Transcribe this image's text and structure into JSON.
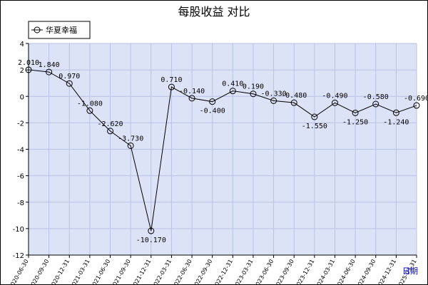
{
  "chart_data": {
    "type": "line",
    "title": "每股收益 对比",
    "xlabel": "日期",
    "ylabel": "",
    "ylim": [
      -12,
      4
    ],
    "yticks": [
      4,
      2,
      0,
      -2,
      -4,
      -6,
      -8,
      -10,
      -12
    ],
    "grid": true,
    "legend": "top-left",
    "x": [
      "2020-06-30",
      "2020-09-30",
      "2020-12-31",
      "2021-03-31",
      "2021-06-30",
      "2021-09-30",
      "2021-12-31",
      "2022-03-31",
      "2022-06-30",
      "2022-09-30",
      "2022-12-31",
      "2023-03-31",
      "2023-06-30",
      "2023-09-30",
      "2023-12-31",
      "2024-03-31",
      "2024-06-30",
      "2024-09-30",
      "2024-12-31",
      "2025-03-31"
    ],
    "series": [
      {
        "name": "华夏幸福",
        "values": [
          2.01,
          1.84,
          0.97,
          -1.08,
          -2.62,
          -3.73,
          -10.17,
          0.71,
          -0.14,
          -0.4,
          0.41,
          0.19,
          -0.33,
          -0.48,
          -1.55,
          -0.49,
          -1.25,
          -0.58,
          -1.24,
          -0.69
        ],
        "labels": [
          "2.010",
          "1.840",
          "0.970",
          "-1.080",
          "-2.620",
          "-3.730",
          "-10.170",
          "0.710",
          "-0.140",
          "-0.400",
          "0.410",
          "0.190",
          "-0.330",
          "-0.480",
          "-1.550",
          "-0.490",
          "-1.250",
          "-0.580",
          "-1.240",
          "-0.690"
        ]
      }
    ],
    "colors": {
      "plot_bg": "#dde3f7",
      "grid": "#b8c2e6",
      "line": "#000000",
      "axis": "#000000"
    }
  }
}
